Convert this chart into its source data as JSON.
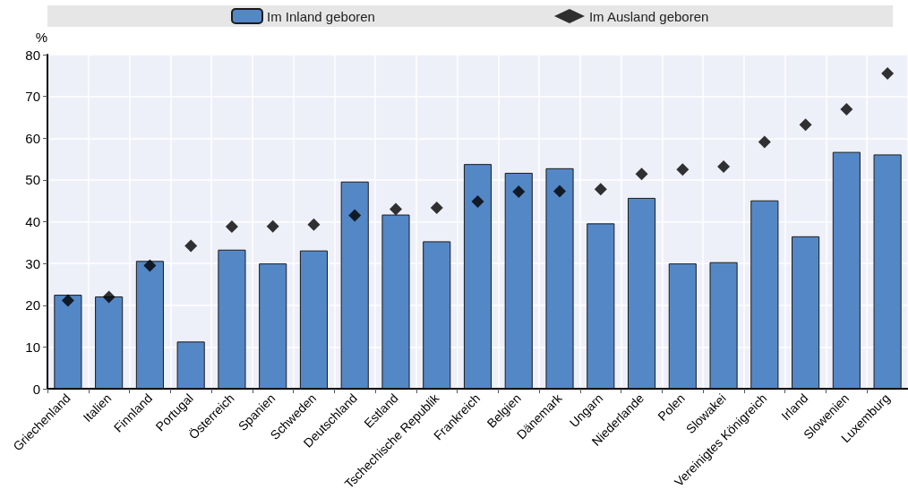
{
  "chart_data": {
    "type": "bar",
    "ylabel": "%",
    "categories": [
      "Griechenland",
      "Italien",
      "Finnland",
      "Portugal",
      "Österreich",
      "Spanien",
      "Schweden",
      "Deutschland",
      "Estland",
      "Tschechische Republik",
      "Frankreich",
      "Belgien",
      "Dänemark",
      "Ungarn",
      "Niederlande",
      "Polen",
      "Slowakei",
      "Vereinigtes Königreich",
      "Irland",
      "Slowenien",
      "Luxemburg"
    ],
    "series": [
      {
        "name": "Im Inland geboren",
        "color": "#5487c6",
        "values": [
          22.5,
          22.1,
          30.6,
          11.3,
          33.3,
          30.0,
          33.1,
          49.6,
          41.7,
          35.3,
          53.8,
          51.7,
          52.8,
          39.6,
          45.7,
          30.0,
          30.3,
          45.1,
          36.5,
          56.7,
          56.1
        ]
      },
      {
        "name": "Im Ausland geboren",
        "type": "scatter",
        "color": "#000000",
        "marker": "diamond",
        "values": [
          21.1,
          22.0,
          29.5,
          34.2,
          38.8,
          38.9,
          39.3,
          41.5,
          43.0,
          43.3,
          44.8,
          47.2,
          47.3,
          47.8,
          51.4,
          52.5,
          53.2,
          59.1,
          63.2,
          66.9,
          75.5
        ]
      }
    ],
    "ylim": [
      0,
      80
    ],
    "yticks": [
      0,
      10,
      20,
      30,
      40,
      50,
      60,
      70,
      80
    ],
    "grid": true,
    "legend": "top"
  }
}
